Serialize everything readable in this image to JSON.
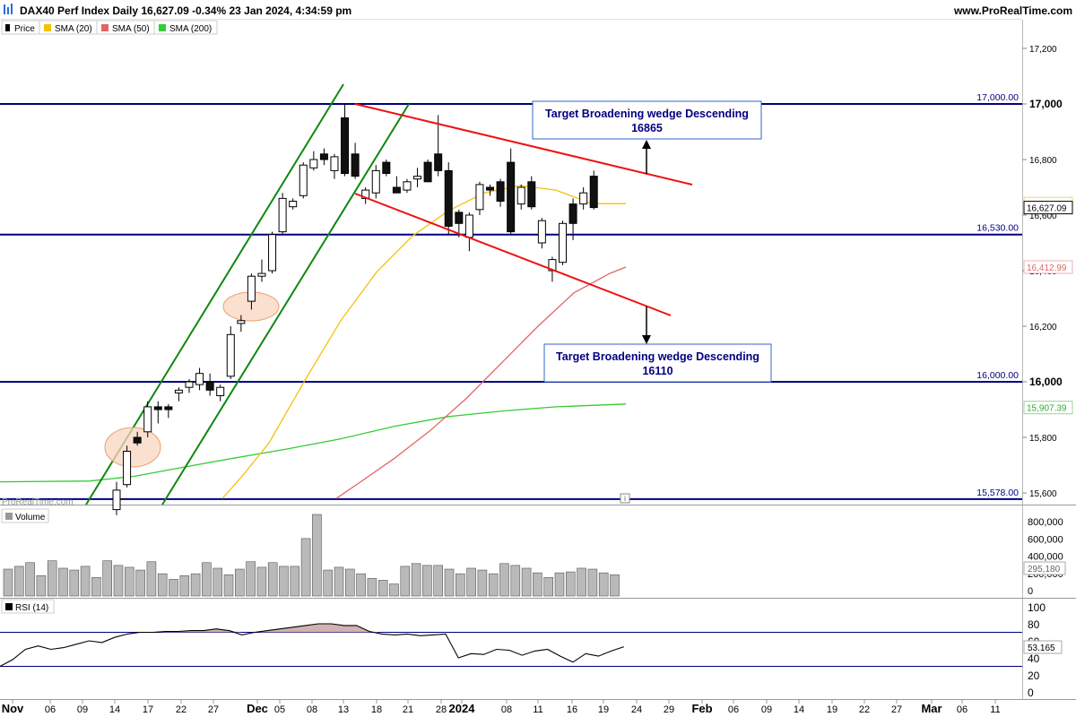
{
  "header": {
    "title": "DAX40 Perf Index Daily 16,627.09 -0.34% 23 Jan 2024, 4:34:59 pm",
    "site": "www.ProRealTime.com"
  },
  "watermark": "ProRealTime.com",
  "info_icon": "i",
  "legend": [
    {
      "label": "Price",
      "color": "#000000"
    },
    {
      "label": "SMA (20)",
      "color": "#f4c20d"
    },
    {
      "label": "SMA (50)",
      "color": "#e06666"
    },
    {
      "label": "SMA (200)",
      "color": "#33cc33"
    }
  ],
  "colors": {
    "up_candle": "#ffffff",
    "down_candle": "#111111",
    "level_line": "#000080",
    "channel": "#118811",
    "wedge": "#ee1111",
    "sma20": "#f4c20d",
    "sma50": "#e06666",
    "sma200": "#33cc33",
    "annotation_text": "#000080",
    "annotation_border": "#3366cc",
    "highlight_fill": "#f9d5c0",
    "highlight_stroke": "#e8a070"
  },
  "levels": [
    {
      "value": 17000,
      "label": "17,000.00"
    },
    {
      "value": 16530,
      "label": "16,530.00"
    },
    {
      "value": 16000,
      "label": "16,000.00"
    },
    {
      "value": 15578,
      "label": "15,578.00"
    }
  ],
  "right_labels": [
    {
      "value": 16641.27,
      "label": "16,641.27",
      "color": "#e0a800",
      "boxed": false
    },
    {
      "value": 16627.09,
      "label": "16,627.09",
      "color": "#000000",
      "boxed": true
    },
    {
      "value": 16412.99,
      "label": "16,412.99",
      "color": "#e06666",
      "boxed": false
    },
    {
      "value": 15907.39,
      "label": "15,907.39",
      "color": "#33aa33",
      "boxed": false
    }
  ],
  "annotations": [
    {
      "line1": "Target Broadening wedge Descending",
      "line2": "16865"
    },
    {
      "line1": "Target Broadening wedge Descending",
      "line2": "16110"
    }
  ],
  "volume_panel": {
    "title": "Volume",
    "last_value": "295,180",
    "ticks": [
      "800,000",
      "600,000",
      "400,000",
      "200,000",
      "0"
    ]
  },
  "rsi_panel": {
    "title": "RSI (14)",
    "last_value": "53.165",
    "ticks": [
      "100",
      "80",
      "60",
      "40",
      "20",
      "0"
    ]
  },
  "x_axis": {
    "labels": [
      "Nov",
      "06",
      "09",
      "14",
      "17",
      "22",
      "27",
      "Dec",
      "05",
      "08",
      "13",
      "18",
      "21",
      "28",
      "2024",
      "08",
      "11",
      "16",
      "19",
      "24",
      "29",
      "Feb",
      "06",
      "09",
      "14",
      "19",
      "22",
      "27",
      "Mar",
      "06",
      "11"
    ],
    "bold": [
      "Nov",
      "Dec",
      "2024",
      "Feb",
      "Mar"
    ]
  },
  "chart_data": {
    "type": "candlestick",
    "title": "DAX40 Perf Index Daily",
    "ylim": [
      15578,
      17250
    ],
    "yticks": [
      "17,200",
      "17,000",
      "16,800",
      "16,600",
      "16,400",
      "16,200",
      "16,000",
      "15,800",
      "15,600"
    ],
    "candles": [
      {
        "date": "2023-11-13",
        "o": 15540,
        "h": 15640,
        "l": 15520,
        "c": 15610
      },
      {
        "date": "2023-11-14",
        "o": 15630,
        "h": 15770,
        "l": 15620,
        "c": 15750
      },
      {
        "date": "2023-11-15",
        "o": 15800,
        "h": 15820,
        "l": 15770,
        "c": 15780
      },
      {
        "date": "2023-11-16",
        "o": 15820,
        "h": 15930,
        "l": 15800,
        "c": 15910
      },
      {
        "date": "2023-11-17",
        "o": 15910,
        "h": 15930,
        "l": 15850,
        "c": 15900
      },
      {
        "date": "2023-11-20",
        "o": 15910,
        "h": 15920,
        "l": 15870,
        "c": 15900
      },
      {
        "date": "2023-11-21",
        "o": 15960,
        "h": 15980,
        "l": 15930,
        "c": 15970
      },
      {
        "date": "2023-11-22",
        "o": 15980,
        "h": 16010,
        "l": 15960,
        "c": 16000
      },
      {
        "date": "2023-11-23",
        "o": 15990,
        "h": 16050,
        "l": 15970,
        "c": 16030
      },
      {
        "date": "2023-11-24",
        "o": 16000,
        "h": 16030,
        "l": 15950,
        "c": 15970
      },
      {
        "date": "2023-11-27",
        "o": 15950,
        "h": 15990,
        "l": 15930,
        "c": 15980
      },
      {
        "date": "2023-11-28",
        "o": 16020,
        "h": 16200,
        "l": 16010,
        "c": 16170
      },
      {
        "date": "2023-11-29",
        "o": 16210,
        "h": 16240,
        "l": 16180,
        "c": 16220
      },
      {
        "date": "2023-11-30",
        "o": 16290,
        "h": 16390,
        "l": 16260,
        "c": 16380
      },
      {
        "date": "2023-12-01",
        "o": 16380,
        "h": 16440,
        "l": 16360,
        "c": 16390
      },
      {
        "date": "2023-12-04",
        "o": 16400,
        "h": 16540,
        "l": 16390,
        "c": 16530
      },
      {
        "date": "2023-12-05",
        "o": 16540,
        "h": 16680,
        "l": 16530,
        "c": 16660
      },
      {
        "date": "2023-12-06",
        "o": 16630,
        "h": 16660,
        "l": 16620,
        "c": 16650
      },
      {
        "date": "2023-12-07",
        "o": 16670,
        "h": 16790,
        "l": 16660,
        "c": 16780
      },
      {
        "date": "2023-12-08",
        "o": 16770,
        "h": 16830,
        "l": 16760,
        "c": 16800
      },
      {
        "date": "2023-12-11",
        "o": 16820,
        "h": 16840,
        "l": 16780,
        "c": 16800
      },
      {
        "date": "2023-12-12",
        "o": 16760,
        "h": 16820,
        "l": 16730,
        "c": 16810
      },
      {
        "date": "2023-12-13",
        "o": 16950,
        "h": 17000,
        "l": 16740,
        "c": 16750
      },
      {
        "date": "2023-12-14",
        "o": 16820,
        "h": 16860,
        "l": 16730,
        "c": 16740
      },
      {
        "date": "2023-12-15",
        "o": 16660,
        "h": 16700,
        "l": 16640,
        "c": 16690
      },
      {
        "date": "2023-12-18",
        "o": 16680,
        "h": 16780,
        "l": 16660,
        "c": 16760
      },
      {
        "date": "2023-12-19",
        "o": 16790,
        "h": 16800,
        "l": 16740,
        "c": 16750
      },
      {
        "date": "2023-12-20",
        "o": 16700,
        "h": 16740,
        "l": 16690,
        "c": 16680
      },
      {
        "date": "2023-12-21",
        "o": 16690,
        "h": 16730,
        "l": 16680,
        "c": 16720
      },
      {
        "date": "2023-12-22",
        "o": 16730,
        "h": 16770,
        "l": 16700,
        "c": 16740
      },
      {
        "date": "2023-12-27",
        "o": 16790,
        "h": 16800,
        "l": 16720,
        "c": 16720
      },
      {
        "date": "2023-12-28",
        "o": 16820,
        "h": 16960,
        "l": 16740,
        "c": 16760
      },
      {
        "date": "2024-01-02",
        "o": 16760,
        "h": 16790,
        "l": 16530,
        "c": 16560
      },
      {
        "date": "2024-01-03",
        "o": 16610,
        "h": 16620,
        "l": 16520,
        "c": 16570
      },
      {
        "date": "2024-01-04",
        "o": 16520,
        "h": 16610,
        "l": 16470,
        "c": 16600
      },
      {
        "date": "2024-01-05",
        "o": 16620,
        "h": 16720,
        "l": 16600,
        "c": 16710
      },
      {
        "date": "2024-01-08",
        "o": 16700,
        "h": 16710,
        "l": 16670,
        "c": 16690
      },
      {
        "date": "2024-01-09",
        "o": 16720,
        "h": 16730,
        "l": 16630,
        "c": 16650
      },
      {
        "date": "2024-01-10",
        "o": 16790,
        "h": 16840,
        "l": 16530,
        "c": 16540
      },
      {
        "date": "2024-01-11",
        "o": 16640,
        "h": 16710,
        "l": 16620,
        "c": 16700
      },
      {
        "date": "2024-01-12",
        "o": 16720,
        "h": 16740,
        "l": 16620,
        "c": 16630
      },
      {
        "date": "2024-01-15",
        "o": 16500,
        "h": 16590,
        "l": 16480,
        "c": 16580
      },
      {
        "date": "2024-01-16",
        "o": 16400,
        "h": 16450,
        "l": 16360,
        "c": 16440
      },
      {
        "date": "2024-01-17",
        "o": 16430,
        "h": 16580,
        "l": 16420,
        "c": 16570
      },
      {
        "date": "2024-01-18",
        "o": 16640,
        "h": 16660,
        "l": 16510,
        "c": 16570
      },
      {
        "date": "2024-01-19",
        "o": 16640,
        "h": 16700,
        "l": 16620,
        "c": 16680
      },
      {
        "date": "2024-01-23",
        "o": 16740,
        "h": 16760,
        "l": 16620,
        "c": 16627.09
      }
    ],
    "volume": [
      290000,
      320000,
      360000,
      220000,
      380000,
      300000,
      280000,
      320000,
      200000,
      380000,
      330000,
      310000,
      280000,
      370000,
      240000,
      180000,
      220000,
      240000,
      360000,
      300000,
      230000,
      290000,
      370000,
      310000,
      360000,
      320000,
      320000,
      620000,
      880000,
      280000,
      310000,
      290000,
      240000,
      190000,
      170000,
      130000,
      320000,
      350000,
      330000,
      330000,
      290000,
      240000,
      300000,
      280000,
      240000,
      350000,
      330000,
      300000,
      250000,
      200000,
      250000,
      260000,
      300000,
      290000,
      250000,
      230000
    ],
    "rsi": [
      30,
      38,
      50,
      54,
      50,
      52,
      56,
      60,
      58,
      64,
      68,
      70,
      70,
      71,
      71,
      72,
      72,
      74,
      72,
      67,
      70,
      72,
      74,
      76,
      78,
      80,
      80,
      78,
      78,
      71,
      68,
      67,
      68,
      66,
      67,
      68,
      40,
      45,
      44,
      50,
      49,
      43,
      48,
      50,
      42,
      35,
      45,
      42,
      48,
      53
    ]
  }
}
